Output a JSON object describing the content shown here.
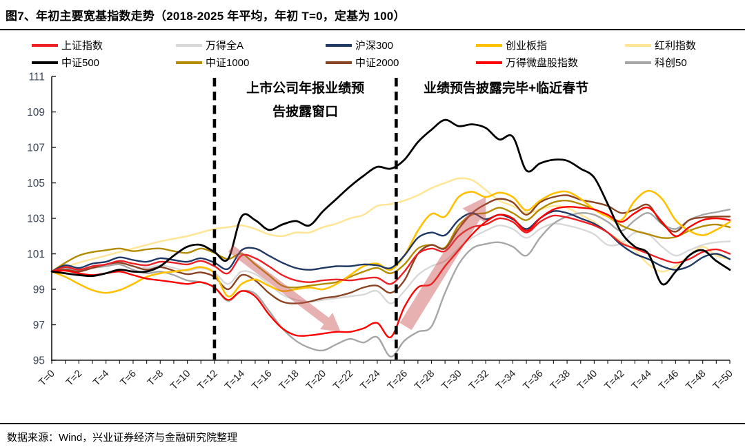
{
  "header": {
    "title": "图7、年初主要宽基指数走势（2018-2025 年平均，年初 T=0，定基为 100）"
  },
  "footer": {
    "source": "数据来源：Wind，兴业证券经济与金融研究院整理"
  },
  "chart_data": {
    "type": "line",
    "title": "年初主要宽基指数走势（2018-2025 年平均，年初 T=0，定基为 100）",
    "xlabel": "",
    "ylabel": "",
    "x_start": 0,
    "x_end": 50,
    "x_step": 1,
    "ylim": [
      95,
      111
    ],
    "yticks": [
      95,
      97,
      99,
      101,
      103,
      105,
      107,
      109,
      111
    ],
    "xticks": [
      0,
      2,
      4,
      6,
      8,
      10,
      12,
      14,
      16,
      18,
      20,
      22,
      24,
      26,
      28,
      30,
      32,
      34,
      36,
      38,
      40,
      42,
      44,
      46,
      48,
      50
    ],
    "x_tick_labels": [
      "T=0",
      "T=2",
      "T=4",
      "T=6",
      "T=8",
      "T=10",
      "T=12",
      "T=14",
      "T=16",
      "T=18",
      "T=20",
      "T=22",
      "T=24",
      "T=26",
      "T=28",
      "T=30",
      "T=32",
      "T=34",
      "T=36",
      "T=38",
      "T=40",
      "T=42",
      "T=44",
      "T=46",
      "T=48",
      "T=50"
    ],
    "grid": false,
    "legend_position": "top",
    "axis_label_color": "#3a4557",
    "tick_label_color": "#1a1a1a",
    "axis_color": "#1a1a1a",
    "dashed_vline_ts": [
      12,
      25.4
    ],
    "annotations": [
      {
        "lines": [
          "上市公司年报业绩预",
          "告披露窗口"
        ],
        "t": 18.7,
        "v_top": 110.1
      },
      {
        "lines": [
          "业绩预告披露完毕+临近春节"
        ],
        "t": 33.5,
        "v_top": 110.1
      }
    ],
    "arrow_color": "rgba(199,83,79,0.45)",
    "arrows": [
      {
        "from": {
          "t": 13.2,
          "v": 101.3
        },
        "to": {
          "t": 21.3,
          "v": 96.6
        },
        "shaft_w": 12,
        "head_w": 30,
        "head_len": 26
      },
      {
        "from": {
          "t": 26.1,
          "v": 96.9
        },
        "to": {
          "t": 32.0,
          "v": 104.2
        },
        "shaft_w": 20,
        "head_w": 40,
        "head_len": 32
      }
    ],
    "draw_order": [
      4,
      1,
      9,
      6,
      7,
      3,
      2,
      0,
      8,
      5
    ],
    "series": [
      {
        "name": "上证指数",
        "color": "#ed1f24",
        "width": 2.4,
        "values": [
          100,
          100.25,
          100.1,
          100.3,
          100.4,
          100.6,
          100.45,
          100.35,
          100.55,
          100.5,
          100.4,
          100.6,
          100.3,
          99.9,
          100.9,
          100.75,
          100.3,
          99.8,
          99.5,
          99.4,
          99.5,
          99.55,
          99.5,
          99.6,
          99.65,
          99.3,
          100,
          101,
          101.3,
          101.15,
          102,
          102.5,
          102.65,
          103,
          102.8,
          102.2,
          102.8,
          103.15,
          103.05,
          102.85,
          102.6,
          102.2,
          101.6,
          101.3,
          101,
          100.7,
          100.5,
          100.7,
          101.1,
          101.25,
          101
        ]
      },
      {
        "name": "万得全A",
        "color": "#d8d8d8",
        "width": 2.4,
        "values": [
          100,
          100.2,
          100.1,
          100.3,
          100.4,
          100.5,
          100.3,
          100.2,
          100.35,
          100.2,
          100.05,
          100.2,
          99.95,
          99.3,
          100,
          99.85,
          99.3,
          98.7,
          98.4,
          98.3,
          98.4,
          98.5,
          98.6,
          98.7,
          98.9,
          98.2,
          98.9,
          99.8,
          100.3,
          100.6,
          101.3,
          101.9,
          102.3,
          102.6,
          102.4,
          101.9,
          102.4,
          102.7,
          102.6,
          102.4,
          102.1,
          101.5,
          101.6,
          102.2,
          102.1,
          101.4,
          100.9,
          101.2,
          101.5,
          101.65,
          101.7
        ]
      },
      {
        "name": "沪深300",
        "color": "#1f3864",
        "width": 2.4,
        "values": [
          100,
          100.35,
          100.2,
          100.45,
          100.55,
          100.8,
          100.65,
          100.55,
          100.75,
          100.65,
          100.55,
          100.75,
          100.5,
          100.15,
          101.2,
          101.3,
          100.9,
          100.5,
          100.2,
          100.1,
          100.2,
          100.3,
          100.3,
          100.4,
          100.35,
          100.2,
          100.9,
          101.9,
          102.2,
          102.05,
          102.9,
          103.3,
          102.95,
          103.2,
          102.95,
          102.4,
          103,
          103.4,
          103.3,
          103,
          102.7,
          102.2,
          101.5,
          101,
          100.7,
          100.3,
          100.1,
          100.3,
          100.8,
          101,
          100.7
        ]
      },
      {
        "name": "创业板指",
        "color": "#ffc000",
        "width": 2.6,
        "values": [
          100,
          99.7,
          99.3,
          98.95,
          98.8,
          98.95,
          99.3,
          99.7,
          99.9,
          100,
          100.1,
          100.25,
          99.9,
          98.6,
          99.3,
          99.55,
          99.2,
          98.9,
          99,
          99.1,
          99,
          99.3,
          99.8,
          100.3,
          100.45,
          100.1,
          100.9,
          102.3,
          103.25,
          103.1,
          104.2,
          104.5,
          104.2,
          104.45,
          104.2,
          103.45,
          104,
          104.4,
          104.5,
          104.1,
          103.5,
          103.1,
          102.9,
          104,
          104.55,
          104.1,
          102.9,
          102.3,
          102.05,
          102.35,
          102.8
        ]
      },
      {
        "name": "红利指数",
        "color": "#ffe699",
        "width": 2.6,
        "values": [
          100,
          100.25,
          100.5,
          100.7,
          100.9,
          101.1,
          101.3,
          101.5,
          101.7,
          101.85,
          102,
          102.2,
          102.4,
          102.5,
          102.6,
          102.4,
          102.1,
          102,
          102.2,
          102.2,
          102.5,
          102.7,
          103,
          103.2,
          103.7,
          103.8,
          104,
          104.3,
          104.7,
          105,
          105.25,
          105.15,
          104.6,
          104,
          103.7,
          103.3,
          103.5,
          103.7,
          103.6,
          103.2,
          102.8,
          102.2,
          101.7,
          101.2,
          100.4,
          100,
          100.3,
          100.9,
          101.4,
          100.9,
          100.7
        ]
      },
      {
        "name": "中证500",
        "color": "#000000",
        "width": 2.8,
        "values": [
          100,
          99.9,
          99.8,
          99.75,
          99.9,
          100.1,
          100,
          100,
          100.3,
          100.9,
          101.4,
          101.5,
          101.1,
          100.7,
          103.1,
          102.9,
          102.35,
          102.65,
          102.85,
          102.6,
          103.4,
          104.1,
          104.8,
          105.4,
          105.9,
          105.8,
          106.3,
          107.3,
          108,
          108.55,
          108.2,
          108.3,
          108.1,
          107.45,
          107.6,
          105.7,
          106.1,
          106.3,
          106.25,
          105.8,
          105.3,
          103.8,
          102.2,
          101.4,
          101,
          99.3,
          100,
          100.9,
          101.2,
          100.6,
          100.1
        ]
      },
      {
        "name": "中证1000",
        "color": "#b38b00",
        "width": 2.4,
        "values": [
          100,
          100.5,
          100.9,
          101.1,
          101.2,
          101.3,
          101.15,
          101.25,
          101.3,
          101.15,
          101.05,
          101.3,
          101.05,
          100.7,
          101,
          100.4,
          99.8,
          99.2,
          99.1,
          99.2,
          99.3,
          99.4,
          99.7,
          100,
          100.2,
          99.9,
          100.4,
          101.3,
          101.5,
          101.35,
          102.6,
          103.2,
          103.3,
          103.6,
          103.3,
          102.9,
          103.5,
          103.9,
          104,
          103.8,
          103.5,
          103.1,
          102.6,
          102.3,
          102.1,
          101.9,
          101.95,
          102.3,
          102.55,
          102.65,
          102.5
        ]
      },
      {
        "name": "中证2000",
        "color": "#8a4423",
        "width": 2.4,
        "values": [
          100,
          100.1,
          100,
          100.2,
          100.4,
          100.5,
          100.3,
          100.1,
          100.25,
          100.05,
          99.85,
          99.95,
          99.7,
          99,
          99.8,
          99.5,
          98.8,
          98.3,
          98.2,
          98.3,
          98.5,
          98.6,
          98.8,
          99.1,
          99.2,
          98.8,
          99.5,
          101,
          101.5,
          101.3,
          102.4,
          103.3,
          103.8,
          104.1,
          103.9,
          103.2,
          103.9,
          104.2,
          104.3,
          104.05,
          103.9,
          103.7,
          103.3,
          103.5,
          103.75,
          102.7,
          102.25,
          102.9,
          103.05,
          103.1,
          103.1
        ]
      },
      {
        "name": "万得微盘股指数",
        "color": "#ff0000",
        "width": 2.4,
        "values": [
          100,
          100.05,
          99.9,
          99.8,
          99.9,
          100,
          99.8,
          99.6,
          99.5,
          99.4,
          99.3,
          99.4,
          99.1,
          98.4,
          98.9,
          98.6,
          97.6,
          96.8,
          96.4,
          96.4,
          96.5,
          96.6,
          96.6,
          96.8,
          97.1,
          96.3,
          98,
          99.1,
          99.3,
          100.3,
          101.2,
          102.1,
          102.8,
          103.2,
          103,
          102.3,
          103,
          103.5,
          103.65,
          103.6,
          103.5,
          103.2,
          102.8,
          103.3,
          103.6,
          102.8,
          102,
          102.5,
          102.9,
          103,
          102.9
        ]
      },
      {
        "name": "科创50",
        "color": "#a6a6a6",
        "width": 2.4,
        "values": [
          100,
          100.15,
          100.05,
          100.2,
          100.3,
          100.4,
          100.1,
          99.9,
          100,
          99.8,
          99.5,
          99.4,
          99.1,
          98.35,
          98.9,
          98.75,
          97.8,
          96.8,
          96.1,
          95.7,
          95.55,
          95.9,
          96.2,
          96,
          96.3,
          95.2,
          96.1,
          96.6,
          96.9,
          98.8,
          100.4,
          101.3,
          101.55,
          101.65,
          101.4,
          100.9,
          101.9,
          102.7,
          103.1,
          103.3,
          103.2,
          102.8,
          102.3,
          102.9,
          103.3,
          102.7,
          102.4,
          102.9,
          103.2,
          103.35,
          103.5
        ]
      }
    ]
  }
}
